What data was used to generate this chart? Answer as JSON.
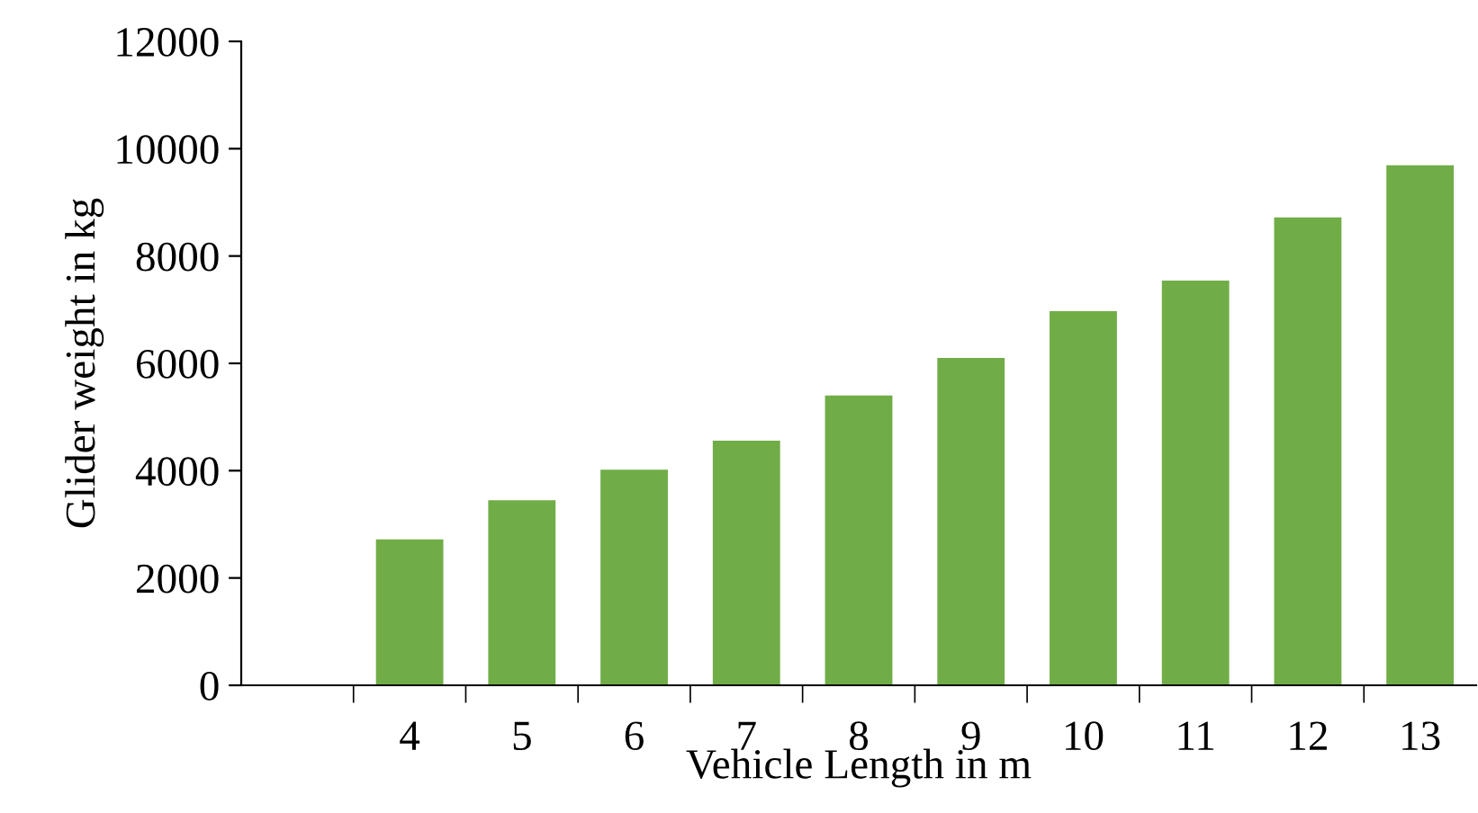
{
  "chart_data": {
    "type": "bar",
    "xlabel": "Vehicle Length in m",
    "ylabel": "Glider weight in kg",
    "categories": [
      null,
      "4",
      "5",
      "6",
      "7",
      "8",
      "9",
      "10",
      "11",
      "12",
      "13"
    ],
    "values": [
      null,
      2720,
      3450,
      4020,
      4560,
      5400,
      6100,
      6970,
      7540,
      8720,
      9690
    ],
    "color": "#70ad47",
    "ylim": [
      0,
      12000
    ],
    "yticks": [
      0,
      2000,
      4000,
      6000,
      8000,
      10000,
      12000
    ],
    "grid": false
  }
}
